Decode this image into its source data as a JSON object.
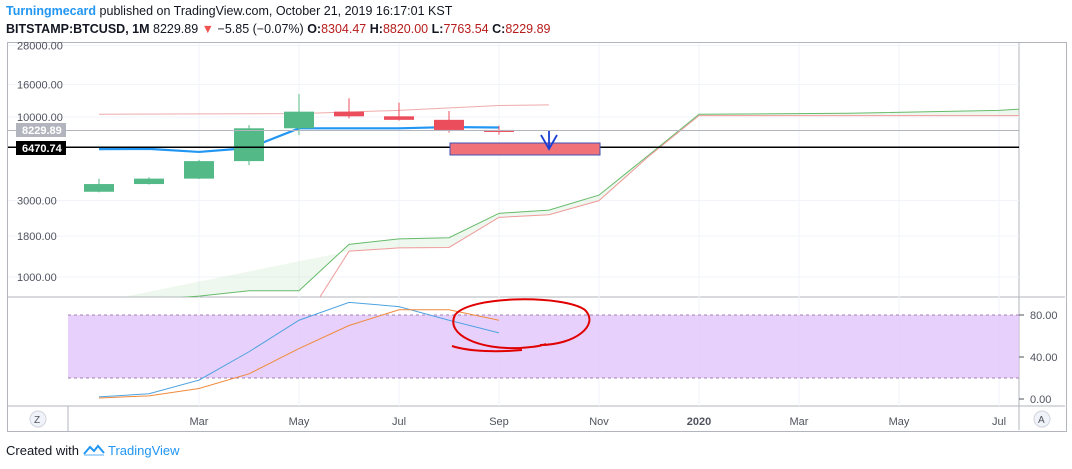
{
  "header": {
    "username": "Turningmecard",
    "published_text": "published on TradingView.com, October 21, 2019 16:17:01 KST"
  },
  "symbol_bar": {
    "symbol": "BITSTAMP:BTCUSD, 1M",
    "last": "8229.89",
    "change": "−5.85 (−0.07%)",
    "open_label": "O:",
    "open": "8304.47",
    "high_label": "H:",
    "high": "8820.00",
    "low_label": "L:",
    "low": "7763.54",
    "close_label": "C:",
    "close": "8229.89"
  },
  "colors": {
    "up": "#53b987",
    "down": "#eb4d5c",
    "accent": "#2196f3",
    "rsi_band": "#e1c4fb",
    "annotation": "#e00000"
  },
  "chart_data": [
    {
      "type": "candlestick",
      "name": "BITSTAMP:BTCUSD, 1M",
      "scale": "log",
      "price_axis_labels": [
        "28000.00",
        "16000.00",
        "10000.00",
        "3000.00",
        "1800.00",
        "1000.00"
      ],
      "price_markers": [
        {
          "label": "8229.89",
          "value": 8229.89
        },
        {
          "label": "6470.74",
          "value": 6470.74
        }
      ],
      "candles": [
        {
          "month": "Jan",
          "open": 3410,
          "close": 3810,
          "high": 4110,
          "low": 3380
        },
        {
          "month": "Feb",
          "open": 3810,
          "close": 4120,
          "high": 4200,
          "low": 3780
        },
        {
          "month": "Mar",
          "open": 4120,
          "close": 5300,
          "high": 5400,
          "low": 4100
        },
        {
          "month": "Apr",
          "open": 5300,
          "close": 8500,
          "high": 8900,
          "low": 5000
        },
        {
          "month": "May",
          "open": 8500,
          "close": 10800,
          "high": 13900,
          "low": 7700
        },
        {
          "month": "Jun",
          "open": 10800,
          "close": 10100,
          "high": 13100,
          "low": 9800
        },
        {
          "month": "Jul",
          "open": 10100,
          "close": 9600,
          "high": 12300,
          "low": 9500
        },
        {
          "month": "Aug",
          "open": 9600,
          "close": 8300,
          "high": 10900,
          "low": 8000
        },
        {
          "month": "Sep",
          "open": 8300,
          "close": 8229.89,
          "high": 8820,
          "low": 7763.54
        }
      ],
      "ma_line": [
        {
          "month": "Jan",
          "value": 6300
        },
        {
          "month": "Feb",
          "value": 6320
        },
        {
          "month": "Mar",
          "value": 6050
        },
        {
          "month": "Apr",
          "value": 6400
        },
        {
          "month": "May",
          "value": 8500
        },
        {
          "month": "Jun",
          "value": 8500
        },
        {
          "month": "Jul",
          "value": 8500
        },
        {
          "month": "Aug",
          "value": 8650
        },
        {
          "month": "Sep",
          "value": 8600
        }
      ],
      "cloud_upper": [
        {
          "month": "Jan",
          "value": 700
        },
        {
          "month": "Feb",
          "value": 720
        },
        {
          "month": "Mar",
          "value": 760
        },
        {
          "month": "Apr",
          "value": 820
        },
        {
          "month": "May",
          "value": 820
        },
        {
          "month": "Jun",
          "value": 1600
        },
        {
          "month": "Jul",
          "value": 1730
        },
        {
          "month": "Aug",
          "value": 1760
        },
        {
          "month": "Sep",
          "value": 2500
        },
        {
          "month": "Oct",
          "value": 2620
        },
        {
          "month": "Nov",
          "value": 3250
        },
        {
          "month": "Dec",
          "value": 5800
        },
        {
          "month": "Jan 2020",
          "value": 10400
        },
        {
          "month": "Apr 2020",
          "value": 10550
        },
        {
          "month": "Jul 2020",
          "value": 11000
        },
        {
          "month": "Aug 2020",
          "value": 11500
        }
      ],
      "cloud_lower": [
        {
          "month": "Jun",
          "value": 1450
        },
        {
          "month": "Jul",
          "value": 1520
        },
        {
          "month": "Aug",
          "value": 1530
        },
        {
          "month": "Sep",
          "value": 2360
        },
        {
          "month": "Oct",
          "value": 2450
        },
        {
          "month": "Nov",
          "value": 3000
        },
        {
          "month": "Dec",
          "value": 5700
        },
        {
          "month": "Jan 2020",
          "value": 10200
        },
        {
          "month": "Aug 2020",
          "value": 10200
        }
      ],
      "lagging_line": [
        {
          "month": "Jan",
          "value": 10400
        },
        {
          "month": "May",
          "value": 10500
        },
        {
          "month": "Jul",
          "value": 11000
        },
        {
          "month": "Sep",
          "value": 11800
        },
        {
          "month": "Oct",
          "value": 11900
        }
      ]
    },
    {
      "type": "line",
      "name": "Stochastic RSI",
      "axis_labels": [
        "80.00",
        "40.00",
        "0.00"
      ],
      "band": [
        20,
        80
      ],
      "series": [
        {
          "values": [
            {
              "month": "Jan",
              "value": 2
            },
            {
              "month": "Feb",
              "value": 5
            },
            {
              "month": "Mar",
              "value": 18
            },
            {
              "month": "Apr",
              "value": 45
            },
            {
              "month": "May",
              "value": 75
            },
            {
              "month": "Jun",
              "value": 92
            },
            {
              "month": "Jul",
              "value": 88
            },
            {
              "month": "Aug",
              "value": 75
            },
            {
              "month": "Sep",
              "value": 63
            }
          ]
        },
        {
          "values": [
            {
              "month": "Jan",
              "value": 1
            },
            {
              "month": "Feb",
              "value": 3
            },
            {
              "month": "Mar",
              "value": 10
            },
            {
              "month": "Apr",
              "value": 24
            },
            {
              "month": "May",
              "value": 48
            },
            {
              "month": "Jun",
              "value": 70
            },
            {
              "month": "Jul",
              "value": 85
            },
            {
              "month": "Aug",
              "value": 85
            },
            {
              "month": "Sep",
              "value": 75
            }
          ]
        }
      ]
    }
  ],
  "time_axis": {
    "labels": [
      "Mar",
      "May",
      "Jul",
      "Sep",
      "Nov",
      "2020",
      "Mar",
      "May",
      "Jul"
    ],
    "bold_index": 5
  },
  "controls": {
    "zoom_label": "Z",
    "auto_label": "A"
  },
  "footer": {
    "created_with": "Created with",
    "brand": "TradingView"
  }
}
